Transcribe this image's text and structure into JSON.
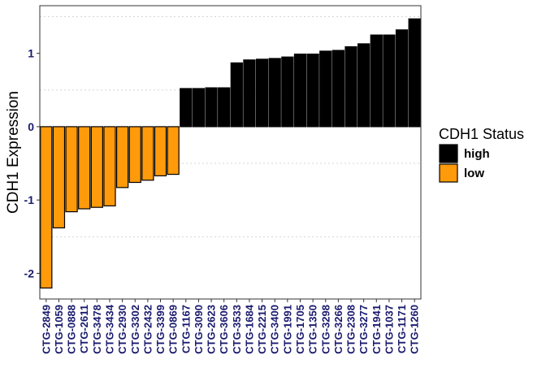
{
  "chart_data": {
    "type": "bar",
    "title": "",
    "xlabel": "",
    "ylabel": "CDH1 Expression",
    "ylim": [
      -2.35,
      1.65
    ],
    "yticks": [
      -2,
      -1,
      0,
      1
    ],
    "grid": "dotted horizontal minor lines",
    "legend": {
      "title": "CDH1 Status",
      "placement": "right",
      "entries": [
        {
          "label": "high",
          "color": "#000000"
        },
        {
          "label": "low",
          "color": "#ff9a0a"
        }
      ]
    },
    "colors": {
      "high": "#000000",
      "low": "#ff9a0a"
    },
    "categories": [
      "CTG-2849",
      "CTG-1059",
      "CTG-0888",
      "CTG-2611",
      "CTG-3478",
      "CTG-3434",
      "CTG-2930",
      "CTG-3302",
      "CTG-2432",
      "CTG-3399",
      "CTG-0869",
      "CTG-1167",
      "CTG-3090",
      "CTG-2623",
      "CTG-3606",
      "CTG-3533",
      "CTG-1684",
      "CTG-2215",
      "CTG-3400",
      "CTG-1991",
      "CTG-1705",
      "CTG-1350",
      "CTG-3298",
      "CTG-3266",
      "CTG-2308",
      "CTG-3277",
      "CTG-1941",
      "CTG-1037",
      "CTG-1171",
      "CTG-1260"
    ],
    "values": [
      -2.2,
      -1.38,
      -1.16,
      -1.12,
      -1.1,
      -1.08,
      -0.83,
      -0.76,
      -0.73,
      -0.67,
      -0.65,
      0.52,
      0.52,
      0.53,
      0.53,
      0.87,
      0.91,
      0.92,
      0.93,
      0.95,
      0.99,
      0.99,
      1.03,
      1.04,
      1.09,
      1.13,
      1.25,
      1.25,
      1.32,
      1.47
    ],
    "status": [
      "low",
      "low",
      "low",
      "low",
      "low",
      "low",
      "low",
      "low",
      "low",
      "low",
      "low",
      "high",
      "high",
      "high",
      "high",
      "high",
      "high",
      "high",
      "high",
      "high",
      "high",
      "high",
      "high",
      "high",
      "high",
      "high",
      "high",
      "high",
      "high",
      "high"
    ]
  }
}
